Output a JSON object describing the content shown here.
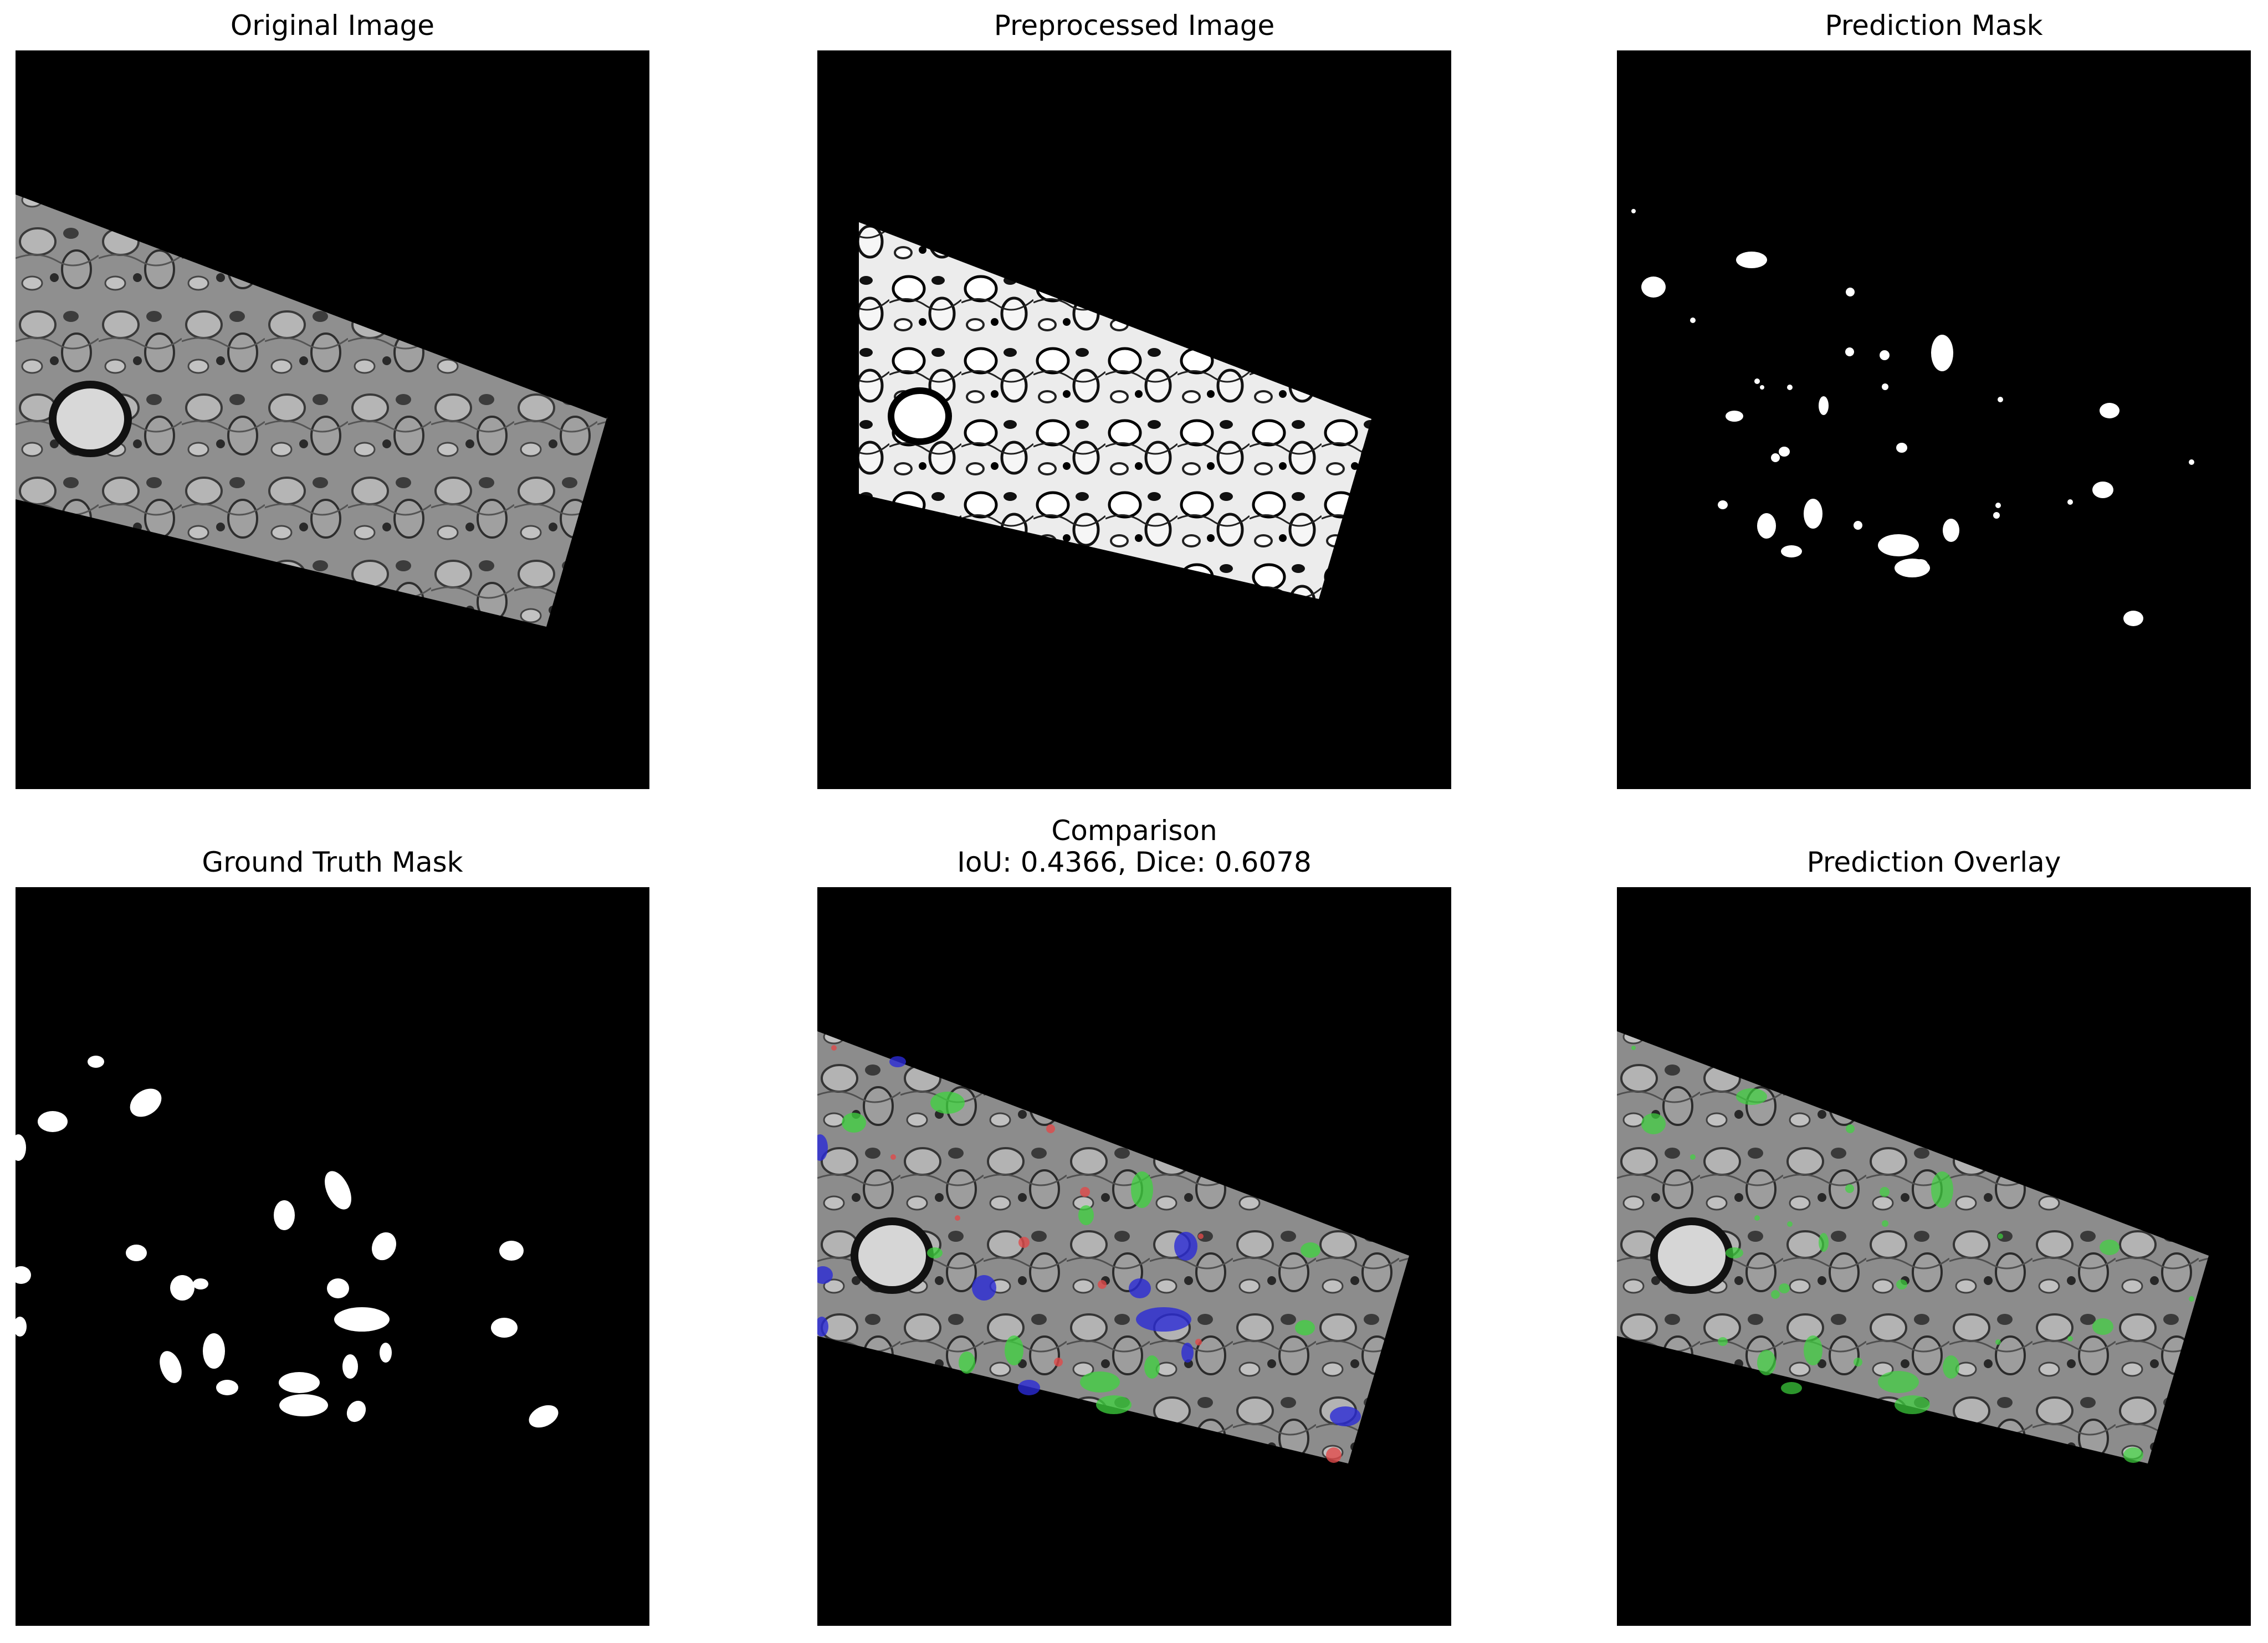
{
  "figure": {
    "panels": [
      {
        "title_lines": [
          "Original Image"
        ],
        "kind": "grayscale-em"
      },
      {
        "title_lines": [
          "Preprocessed Image"
        ],
        "kind": "enhanced-em"
      },
      {
        "title_lines": [
          "Prediction Mask"
        ],
        "kind": "binary-mask"
      },
      {
        "title_lines": [
          "Ground Truth Mask"
        ],
        "kind": "binary-mask"
      },
      {
        "title_lines": [
          "Comparison",
          "IoU: 0.4366, Dice: 0.6078"
        ],
        "kind": "comparison-overlay"
      },
      {
        "title_lines": [
          "Prediction Overlay"
        ],
        "kind": "prediction-overlay"
      }
    ]
  },
  "metrics": {
    "iou": 0.4366,
    "dice": 0.6078
  },
  "colors": {
    "background": "#000000",
    "mask_foreground": "#ffffff",
    "true_positive": "#3fd43f",
    "false_negative": "#2a2ad6",
    "false_positive": "#e04a4a",
    "tissue_gray": "#8c8c8c"
  }
}
